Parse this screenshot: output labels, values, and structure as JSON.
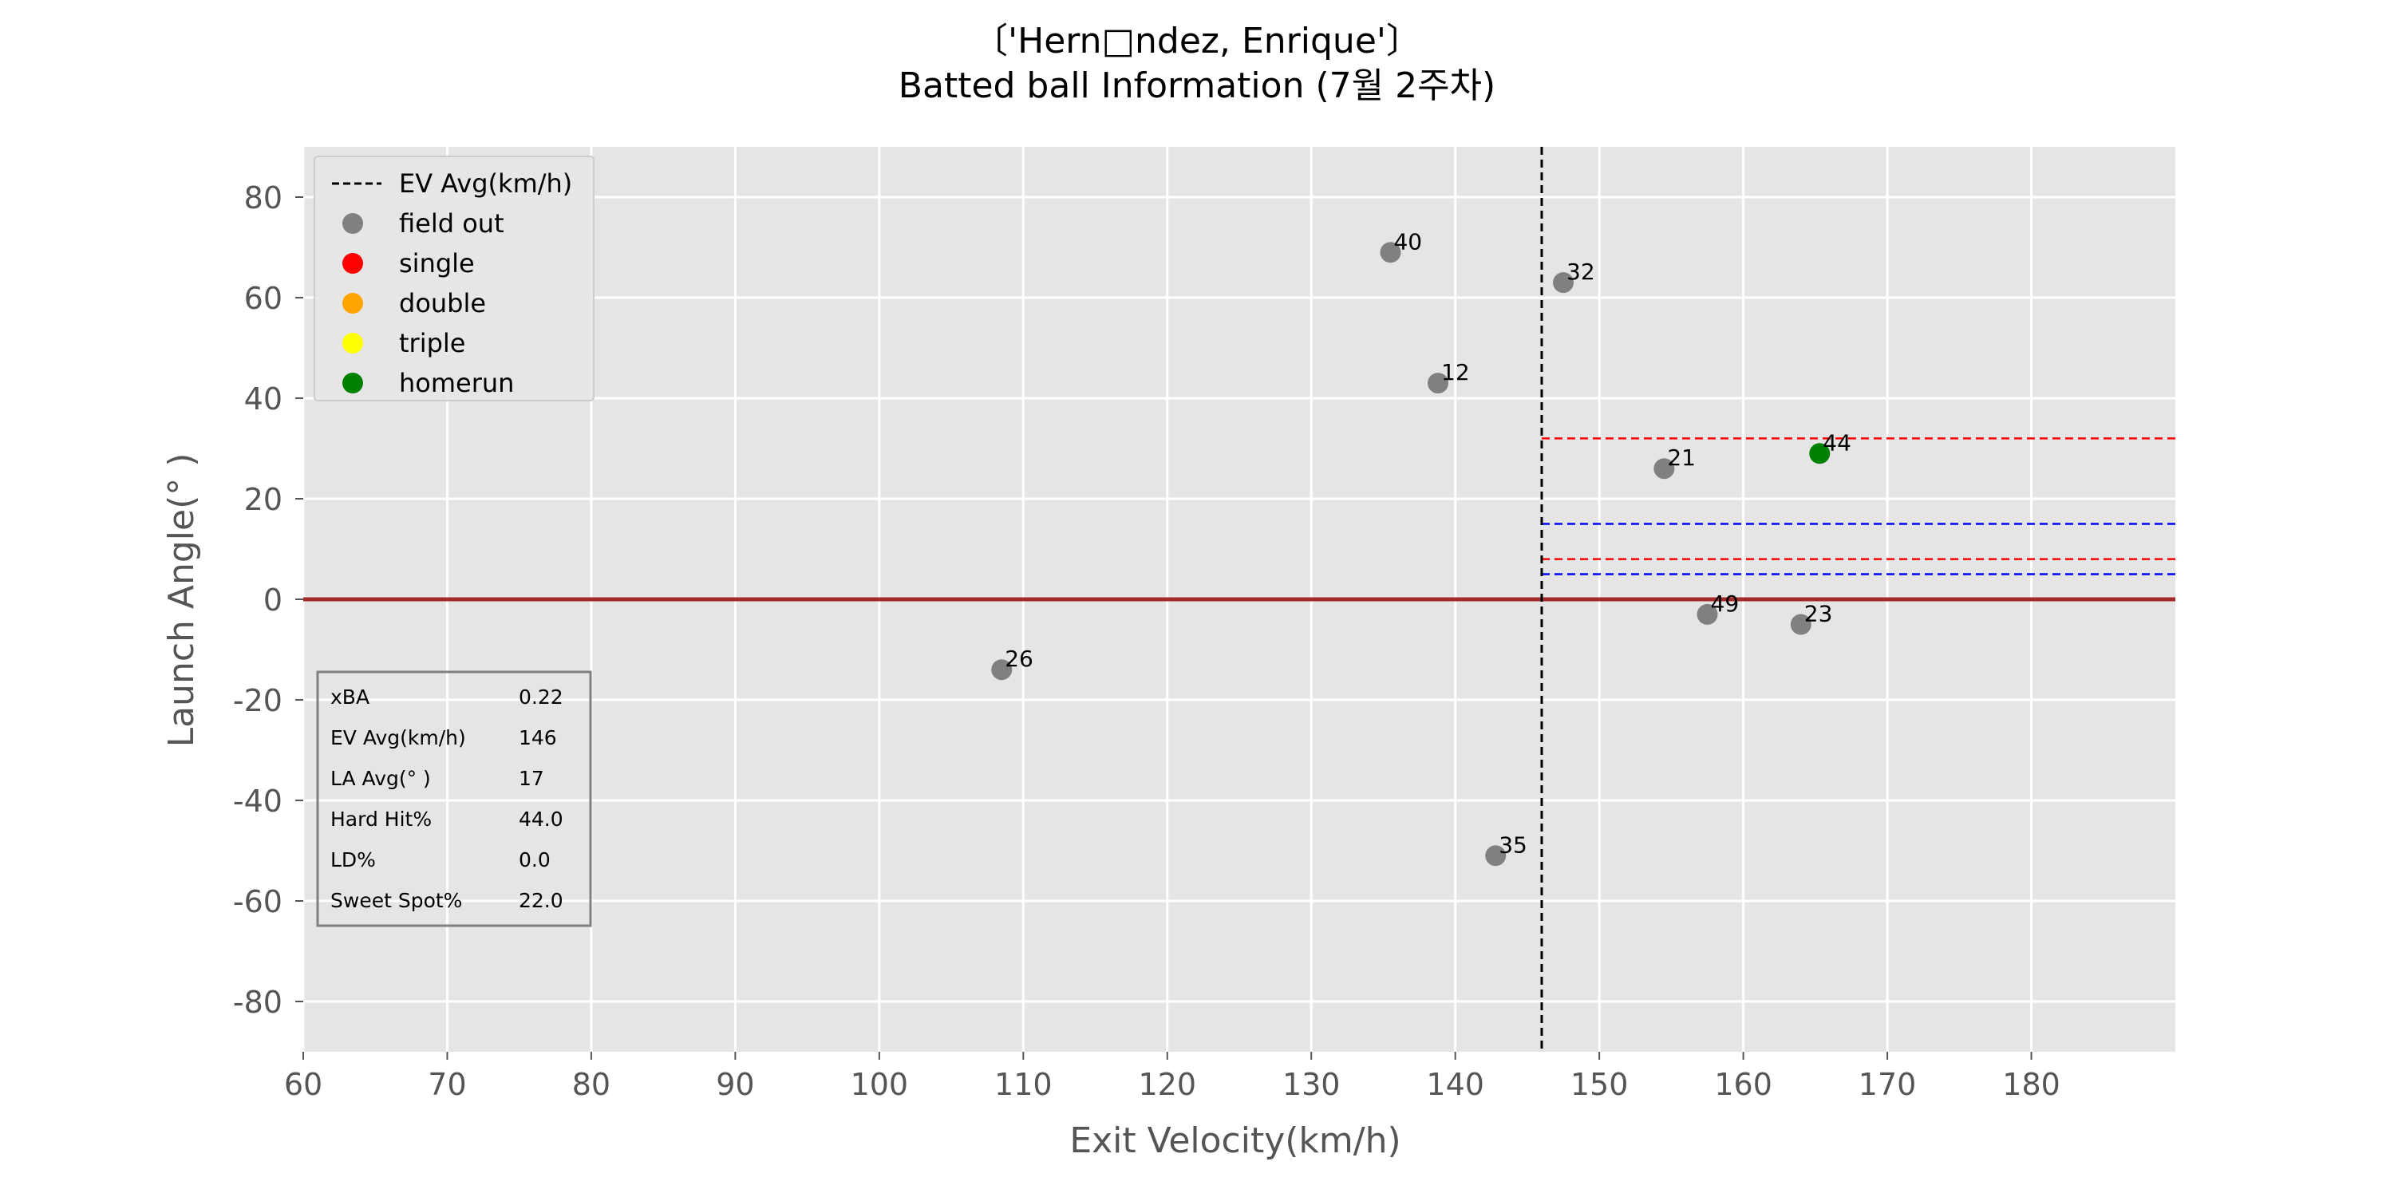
{
  "chart_data": {
    "type": "scatter",
    "title_line1": "〔'Hern□ndez, Enrique'〕",
    "title_line2": "Batted ball Information (7월 2주차)",
    "xlabel": "Exit Velocity(km/h)",
    "ylabel": "Launch Angle(° )",
    "xlim": [
      60,
      190
    ],
    "ylim": [
      -90,
      90
    ],
    "xticks": [
      60,
      70,
      80,
      90,
      100,
      110,
      120,
      130,
      140,
      150,
      160,
      170,
      180
    ],
    "yticks": [
      -80,
      -60,
      -40,
      -20,
      0,
      20,
      40,
      60,
      80
    ],
    "grid": true,
    "legend_position": "upper-left",
    "legend": [
      {
        "label": "EV Avg(km/h)",
        "kind": "dashed-line",
        "color": "#000000"
      },
      {
        "label": "field out",
        "kind": "marker",
        "color": "#808080"
      },
      {
        "label": "single",
        "kind": "marker",
        "color": "#ff0000"
      },
      {
        "label": "double",
        "kind": "marker",
        "color": "#ffa500"
      },
      {
        "label": "triple",
        "kind": "marker",
        "color": "#ffff00"
      },
      {
        "label": "homerun",
        "kind": "marker",
        "color": "#008000"
      }
    ],
    "colors": {
      "field out": "#808080",
      "single": "#ff0000",
      "double": "#ffa500",
      "triple": "#ffff00",
      "homerun": "#008000",
      "zero_line": "#a52a2a",
      "red_band": "#ff0000",
      "blue_band": "#0000ff",
      "plot_background": "#e5e5e5"
    },
    "points": [
      {
        "x": 135.5,
        "y": 69,
        "label": "40",
        "result": "field out"
      },
      {
        "x": 147.5,
        "y": 63,
        "label": "32",
        "result": "field out"
      },
      {
        "x": 138.8,
        "y": 43,
        "label": "12",
        "result": "field out"
      },
      {
        "x": 154.5,
        "y": 26,
        "label": "21",
        "result": "field out"
      },
      {
        "x": 165.3,
        "y": 29,
        "label": "44",
        "result": "homerun"
      },
      {
        "x": 157.5,
        "y": -3,
        "label": "49",
        "result": "field out"
      },
      {
        "x": 164.0,
        "y": -5,
        "label": "23",
        "result": "field out"
      },
      {
        "x": 108.5,
        "y": -14,
        "label": "26",
        "result": "field out"
      },
      {
        "x": 142.8,
        "y": -51,
        "label": "35",
        "result": "field out"
      }
    ],
    "ev_avg_line": 146,
    "zero_line": 0,
    "reference_lines": [
      {
        "y": 32,
        "color": "red",
        "x_start": 146
      },
      {
        "y": 8,
        "color": "red",
        "x_start": 146
      },
      {
        "y": 15,
        "color": "blue",
        "x_start": 146
      },
      {
        "y": 5,
        "color": "blue",
        "x_start": 146
      }
    ],
    "stats_table": [
      {
        "label": "xBA",
        "value": "0.22"
      },
      {
        "label": "EV Avg(km/h)",
        "value": "146"
      },
      {
        "label": "LA Avg(° )",
        "value": "17"
      },
      {
        "label": "Hard Hit%",
        "value": "44.0"
      },
      {
        "label": "LD%",
        "value": "0.0"
      },
      {
        "label": "Sweet Spot%",
        "value": "22.0"
      }
    ]
  }
}
